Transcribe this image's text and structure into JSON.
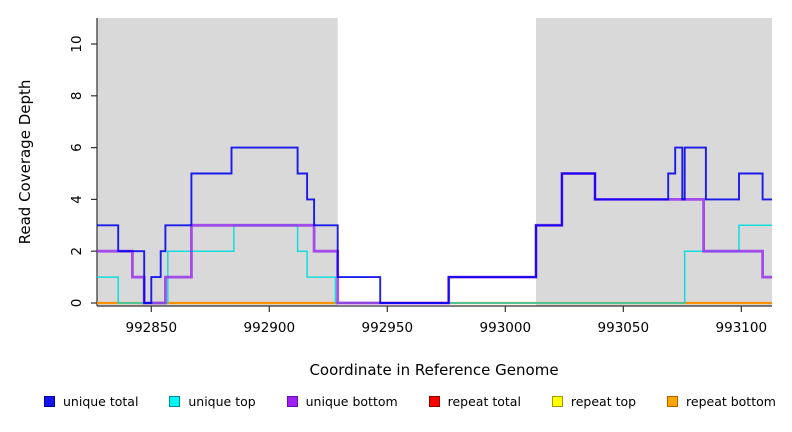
{
  "chart_data": {
    "type": "line",
    "subtype": "step-coverage",
    "title": "",
    "xlabel": "Coordinate in Reference Genome",
    "ylabel": "Read Coverage Depth",
    "xlim": [
      992827,
      993113
    ],
    "ylim": [
      0,
      11.1
    ],
    "x_ticks": [
      992850,
      992900,
      992950,
      993000,
      993050,
      993100
    ],
    "y_ticks": [
      0,
      2,
      4,
      6,
      8,
      10
    ],
    "grid": "off",
    "background": "#ffffff",
    "shade_color": "#d9d9d9",
    "shaded_regions": [
      {
        "x0": 992827,
        "x1": 992929
      },
      {
        "x0": 993013,
        "x1": 993113
      }
    ],
    "series": [
      {
        "name": "repeat total",
        "color": "#e8333f",
        "width": 1.2,
        "opacity": 0.95,
        "steps": [
          [
            992827,
            0
          ]
        ]
      },
      {
        "name": "repeat top",
        "color": "#f5e800",
        "width": 1.2,
        "opacity": 0.95,
        "steps": [
          [
            992827,
            0
          ]
        ]
      },
      {
        "name": "repeat bottom",
        "color": "#ff9100",
        "width": 2.2,
        "opacity": 1,
        "steps": [
          [
            992827,
            0
          ]
        ]
      },
      {
        "name": "unique top",
        "color": "#00dcdc",
        "width": 1.5,
        "opacity": 0.9,
        "steps": [
          [
            992827,
            1
          ],
          [
            992836,
            0
          ],
          [
            992857,
            2
          ],
          [
            992885,
            3
          ],
          [
            992912,
            2
          ],
          [
            992916,
            1
          ],
          [
            992928,
            0
          ],
          [
            993076,
            2
          ],
          [
            993099,
            3
          ]
        ]
      },
      {
        "name": "unique bottom",
        "color": "#9932ec",
        "width": 2.8,
        "opacity": 0.85,
        "steps": [
          [
            992827,
            2
          ],
          [
            992842,
            1
          ],
          [
            992847,
            0
          ],
          [
            992856,
            1
          ],
          [
            992867,
            3
          ],
          [
            992919,
            2
          ],
          [
            992929,
            0
          ],
          [
            992976,
            1
          ],
          [
            993013,
            3
          ],
          [
            993024,
            5
          ],
          [
            993038,
            4
          ],
          [
            993084,
            2
          ],
          [
            993109,
            1
          ]
        ]
      },
      {
        "name": "unique total",
        "color": "#0000ee",
        "width": 1.9,
        "opacity": 0.88,
        "steps": [
          [
            992827,
            3
          ],
          [
            992836,
            2
          ],
          [
            992847,
            0
          ],
          [
            992850,
            1
          ],
          [
            992854,
            2
          ],
          [
            992856,
            3
          ],
          [
            992867,
            5
          ],
          [
            992884,
            6
          ],
          [
            992912,
            5
          ],
          [
            992916,
            4
          ],
          [
            992919,
            3
          ],
          [
            992929,
            1
          ],
          [
            992947,
            0
          ],
          [
            992976,
            1
          ],
          [
            993013,
            3
          ],
          [
            993024,
            5
          ],
          [
            993038,
            4
          ],
          [
            993069,
            5
          ],
          [
            993072,
            6
          ],
          [
            993075,
            4
          ],
          [
            993076,
            6
          ],
          [
            993085,
            4
          ],
          [
            993099,
            5
          ],
          [
            993109,
            4
          ]
        ]
      }
    ],
    "legend": [
      {
        "label": "unique total",
        "fill": "#1414eb",
        "border": "#0000a0"
      },
      {
        "label": "unique top",
        "fill": "#00f5f5",
        "border": "#008b9b"
      },
      {
        "label": "unique bottom",
        "fill": "#a020f0",
        "border": "#6a0dad"
      },
      {
        "label": "repeat total",
        "fill": "#ff0000",
        "border": "#8b0000"
      },
      {
        "label": "repeat top",
        "fill": "#ffff00",
        "border": "#9b9b00"
      },
      {
        "label": "repeat bottom",
        "fill": "#ffa500",
        "border": "#b06000"
      }
    ],
    "legend_position": "bottom"
  }
}
